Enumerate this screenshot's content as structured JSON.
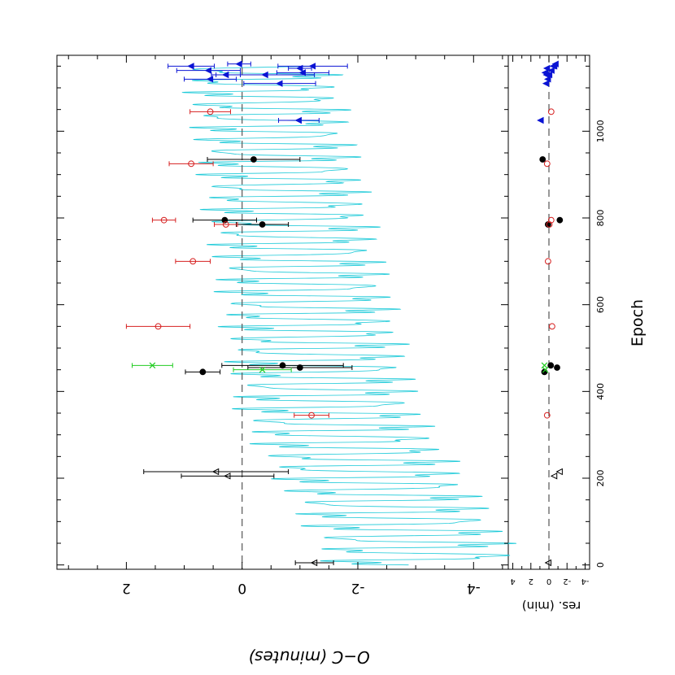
{
  "colors": {
    "model": "#19c9d8",
    "black": "#000000",
    "red": "#d62020",
    "green": "#22cc22",
    "blue": "#0b14d4",
    "zero": "#555555"
  },
  "chart_data": {
    "type": "scatter",
    "orientation": "rotated-90-clockwise",
    "xlabel": "Epoch",
    "ylabel": "O−C  (minutes)",
    "xlim": [
      -10,
      1175
    ],
    "main_panel": {
      "ylim": [
        -4.6,
        3.2
      ],
      "yticks": [
        -4,
        -2,
        0,
        2
      ],
      "ytick_labels": [
        "-4",
        "-2",
        "0",
        "2"
      ],
      "zero_line": true
    },
    "residual_panel": {
      "ylabel": "res. (min)",
      "ylim": [
        -4.5,
        4.5
      ],
      "yticks": [
        -4,
        -2,
        0,
        2,
        4
      ],
      "ytick_labels": [
        "-4",
        "-2",
        "0",
        "2",
        "4"
      ],
      "zero_line": true
    },
    "xticks": [
      0,
      200,
      400,
      600,
      800,
      1000
    ],
    "xtick_labels": [
      "0",
      "200",
      "400",
      "600",
      "800",
      "1000"
    ],
    "model_curve": {
      "period_epochs": 27,
      "trend_start": [
        0,
        -3.2
      ],
      "trend_mid": [
        350,
        -1.5
      ],
      "trend_end": [
        1150,
        -0.3
      ],
      "amplitude_start": 2.0,
      "amplitude_end": 1.5
    },
    "series": [
      {
        "marker": "open-triangle",
        "color": "#000000",
        "points": [
          {
            "x": 5,
            "y": -1.25,
            "err": 0.33,
            "res": 0.05
          },
          {
            "x": 205,
            "y": 0.25,
            "err": 0.8,
            "res": -0.6
          },
          {
            "x": 215,
            "y": 0.45,
            "err": 1.25,
            "res": -1.2
          }
        ]
      },
      {
        "marker": "filled-circle",
        "color": "#000000",
        "points": [
          {
            "x": 445,
            "y": 0.68,
            "err": 0.3,
            "res": 0.5
          },
          {
            "x": 455,
            "y": -1.0,
            "err": 0.9,
            "res": -0.9
          },
          {
            "x": 460,
            "y": -0.7,
            "err": 1.05,
            "res": -0.2
          },
          {
            "x": 785,
            "y": -0.35,
            "err": 0.45,
            "res": 0.1
          },
          {
            "x": 795,
            "y": 0.3,
            "err": 0.55,
            "res": -1.2
          },
          {
            "x": 935,
            "y": -0.2,
            "err": 0.8,
            "res": 0.7
          }
        ]
      },
      {
        "marker": "open-circle",
        "color": "#d62020",
        "points": [
          {
            "x": 345,
            "y": -1.2,
            "err": 0.3,
            "res": 0.2
          },
          {
            "x": 550,
            "y": 1.45,
            "err": 0.55,
            "res": -0.35
          },
          {
            "x": 700,
            "y": 0.85,
            "err": 0.3,
            "res": 0.1
          },
          {
            "x": 785,
            "y": 0.28,
            "err": 0.2,
            "res": -0.05
          },
          {
            "x": 795,
            "y": 1.35,
            "err": 0.2,
            "res": -0.25
          },
          {
            "x": 925,
            "y": 0.88,
            "err": 0.38,
            "res": 0.2
          },
          {
            "x": 1045,
            "y": 0.55,
            "err": 0.35,
            "res": -0.25
          }
        ]
      },
      {
        "marker": "cross",
        "color": "#22cc22",
        "points": [
          {
            "x": 450,
            "y": -0.35,
            "err": 0.5,
            "res": 0.4
          },
          {
            "x": 460,
            "y": 1.55,
            "err": 0.35,
            "res": 0.5
          }
        ]
      },
      {
        "marker": "filled-triangle",
        "color": "#0b14d4",
        "points": [
          {
            "x": 1025,
            "y": -0.98,
            "err": 0.35,
            "res": 0.9
          },
          {
            "x": 1110,
            "y": -0.65,
            "err": 0.62,
            "res": 0.3
          },
          {
            "x": 1120,
            "y": 0.55,
            "err": 0.45,
            "res": 0.1
          },
          {
            "x": 1130,
            "y": 0.28,
            "err": 0.25,
            "res": 0.25
          },
          {
            "x": 1130,
            "y": -0.4,
            "err": 0.85,
            "res": -0.05
          },
          {
            "x": 1135,
            "y": -1.05,
            "err": 0.45,
            "res": 0.4
          },
          {
            "x": 1140,
            "y": 0.58,
            "err": 0.55,
            "res": -0.3
          },
          {
            "x": 1145,
            "y": -1.0,
            "err": 0.2,
            "res": 0.2
          },
          {
            "x": 1150,
            "y": 0.88,
            "err": 0.4,
            "res": -0.5
          },
          {
            "x": 1150,
            "y": -1.22,
            "err": 0.6,
            "res": -0.6
          },
          {
            "x": 1155,
            "y": 0.05,
            "err": 0.2,
            "res": -0.75
          }
        ]
      }
    ]
  }
}
